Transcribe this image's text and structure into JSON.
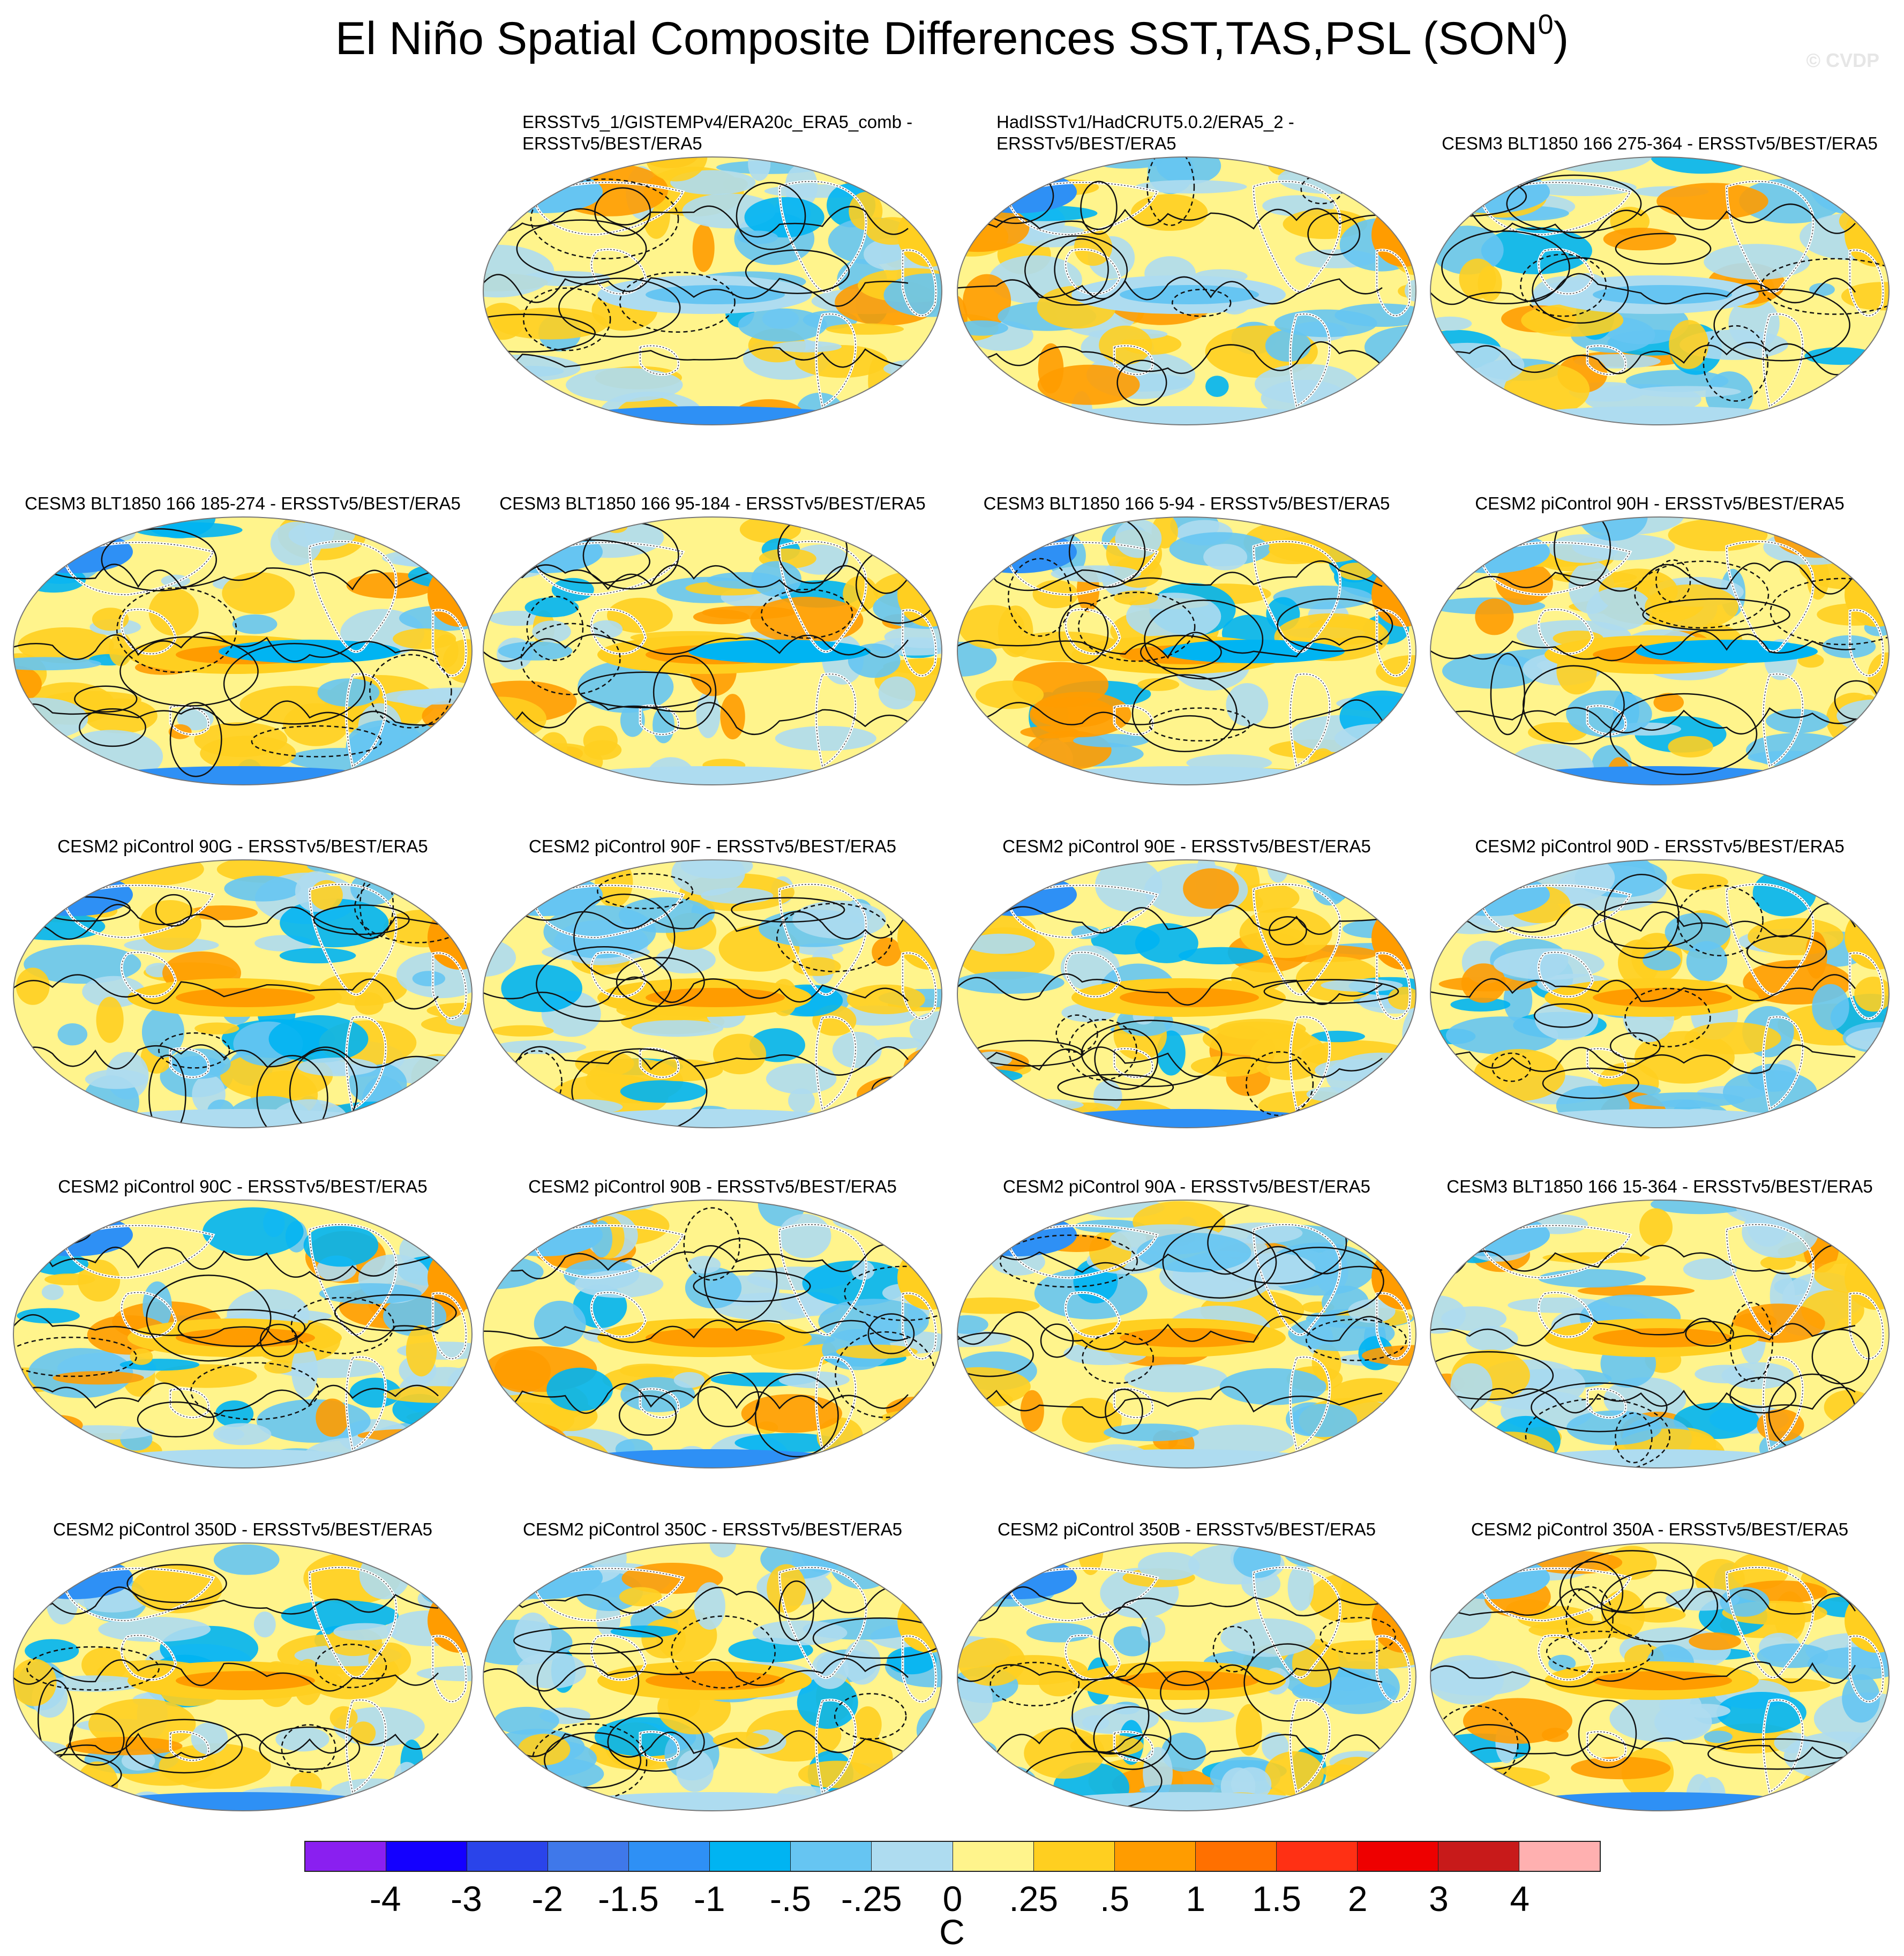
{
  "title": {
    "text": "El Niño Spatial Composite Differences SST,TAS,PSL (SON",
    "sup": "0",
    "close": ")"
  },
  "watermark": "© CVDP",
  "panels": [
    {
      "id": "p1",
      "title": "ERSSTv5_1/GISTEMPv4/ERA20c_ERA5_comb -\nERSSTv5/BEST/ERA5",
      "align": "left"
    },
    {
      "id": "p2",
      "title": "HadISSTv1/HadCRUT5.0.2/ERA5_2 -\nERSSTv5/BEST/ERA5",
      "align": "left"
    },
    {
      "id": "p3",
      "title": "CESM3 BLT1850 166 275-364 - ERSSTv5/BEST/ERA5",
      "align": "center"
    },
    {
      "id": "p4",
      "title": "CESM3 BLT1850 166 185-274 - ERSSTv5/BEST/ERA5",
      "align": "center"
    },
    {
      "id": "p5",
      "title": "CESM3 BLT1850 166 95-184 - ERSSTv5/BEST/ERA5",
      "align": "center"
    },
    {
      "id": "p6",
      "title": "CESM3 BLT1850 166 5-94 - ERSSTv5/BEST/ERA5",
      "align": "center"
    },
    {
      "id": "p7",
      "title": "CESM2 piControl 90H - ERSSTv5/BEST/ERA5",
      "align": "center"
    },
    {
      "id": "p8",
      "title": "CESM2 piControl 90G - ERSSTv5/BEST/ERA5",
      "align": "center"
    },
    {
      "id": "p9",
      "title": "CESM2 piControl 90F - ERSSTv5/BEST/ERA5",
      "align": "center"
    },
    {
      "id": "p10",
      "title": "CESM2 piControl 90E - ERSSTv5/BEST/ERA5",
      "align": "center"
    },
    {
      "id": "p11",
      "title": "CESM2 piControl 90D - ERSSTv5/BEST/ERA5",
      "align": "center"
    },
    {
      "id": "p12",
      "title": "CESM2 piControl 90C - ERSSTv5/BEST/ERA5",
      "align": "center"
    },
    {
      "id": "p13",
      "title": "CESM2 piControl 90B - ERSSTv5/BEST/ERA5",
      "align": "center"
    },
    {
      "id": "p14",
      "title": "CESM2 piControl 90A - ERSSTv5/BEST/ERA5",
      "align": "center"
    },
    {
      "id": "p15",
      "title": "CESM3 BLT1850 166 15-364 - ERSSTv5/BEST/ERA5",
      "align": "center"
    },
    {
      "id": "p16",
      "title": "CESM2 piControl 350D - ERSSTv5/BEST/ERA5",
      "align": "center"
    },
    {
      "id": "p17",
      "title": "CESM2 piControl 350C - ERSSTv5/BEST/ERA5",
      "align": "center"
    },
    {
      "id": "p18",
      "title": "CESM2 piControl 350B - ERSSTv5/BEST/ERA5",
      "align": "center"
    },
    {
      "id": "p19",
      "title": "CESM2 piControl 350A - ERSSTv5/BEST/ERA5",
      "align": "center"
    }
  ],
  "colorbar": {
    "colors": [
      "#8a1ff0",
      "#1400ff",
      "#2a44ea",
      "#3f78ea",
      "#2e90f5",
      "#00b4f2",
      "#66c5f2",
      "#aedcf0",
      "#fff48c",
      "#ffcf20",
      "#ff9c00",
      "#ff7000",
      "#ff3014",
      "#ee0000",
      "#c81a1a",
      "#ffb0b0"
    ],
    "labels": [
      "-4",
      "-3",
      "-2",
      "-1.5",
      "-1",
      "-.5",
      "-.25",
      "0",
      ".25",
      ".5",
      "1",
      "1.5",
      "2",
      "3",
      "4"
    ],
    "units": "C"
  },
  "map_colors": {
    "land_outline": "#ffffff",
    "coast": "#444444",
    "contour": "#111111",
    "frame": "#777777"
  }
}
